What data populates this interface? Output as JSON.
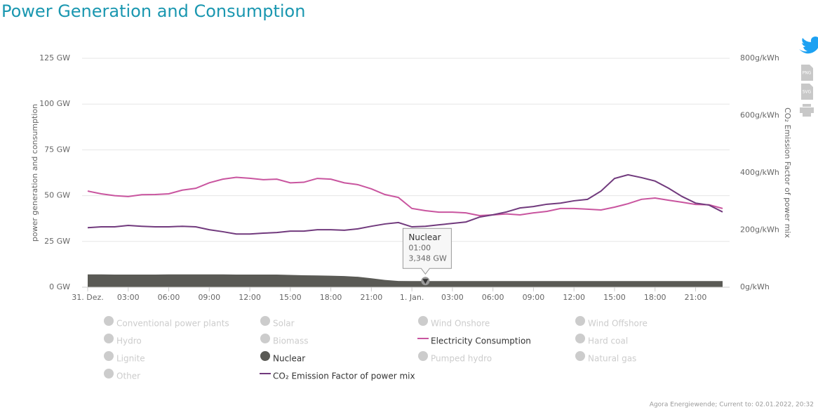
{
  "chart_data": {
    "type": "line",
    "title": "Power Generation and Consumption",
    "ylabel": "power generation and consumption",
    "y2label": "CO₂ Emission Factor of power mix",
    "categories": [
      "31. Dez.",
      null,
      null,
      "03:00",
      null,
      null,
      "06:00",
      null,
      null,
      "09:00",
      null,
      null,
      "12:00",
      null,
      null,
      "15:00",
      null,
      null,
      "18:00",
      null,
      null,
      "21:00",
      null,
      null,
      "1. Jan.",
      "01:00",
      null,
      "03:00",
      null,
      null,
      "06:00",
      null,
      null,
      "09:00",
      null,
      null,
      "12:00",
      null,
      null,
      "15:00",
      null,
      null,
      "18:00",
      null,
      null,
      "21:00",
      null,
      null
    ],
    "ylim": [
      0,
      125
    ],
    "yticks": [
      {
        "value": 0,
        "label": "0 GW"
      },
      {
        "value": 25,
        "label": "25 GW"
      },
      {
        "value": 50,
        "label": "50 GW"
      },
      {
        "value": 75,
        "label": "75 GW"
      },
      {
        "value": 100,
        "label": "100 GW"
      },
      {
        "value": 125,
        "label": "125 GW"
      }
    ],
    "y2lim": [
      0,
      800
    ],
    "y2ticks": [
      {
        "value": 0,
        "label": "0g/kWh"
      },
      {
        "value": 200,
        "label": "200g/kWh"
      },
      {
        "value": 400,
        "label": "400g/kWh"
      },
      {
        "value": 600,
        "label": "600g/kWh"
      },
      {
        "value": 800,
        "label": "800g/kWh"
      }
    ],
    "grid": true,
    "series": [
      {
        "name": "Nuclear",
        "type": "area",
        "color": "#5a5a55",
        "values": [
          7.0,
          7.0,
          6.9,
          6.9,
          6.9,
          6.9,
          7.0,
          7.0,
          7.0,
          7.0,
          7.0,
          6.9,
          6.9,
          6.9,
          6.9,
          6.7,
          6.5,
          6.4,
          6.3,
          6.1,
          5.7,
          4.9,
          4.0,
          3.4,
          3.35,
          3.348,
          3.35,
          3.35,
          3.35,
          3.35,
          3.35,
          3.35,
          3.35,
          3.35,
          3.35,
          3.35,
          3.35,
          3.35,
          3.35,
          3.35,
          3.35,
          3.35,
          3.35,
          3.35,
          3.35,
          3.35,
          3.35,
          3.35
        ],
        "value_labels": [
          null,
          null,
          null,
          null,
          null,
          null,
          null,
          null,
          null,
          null,
          null,
          null,
          null,
          null,
          null,
          null,
          null,
          null,
          null,
          null,
          null,
          null,
          null,
          null,
          null,
          "3,348 GW",
          null,
          null,
          null,
          null,
          null,
          null,
          null,
          null,
          null,
          null,
          null,
          null,
          null,
          null,
          null,
          null,
          null,
          null,
          null,
          null,
          null,
          null
        ]
      },
      {
        "name": "Electricity Consumption",
        "type": "line",
        "color": "#c9559f",
        "values": [
          52.5,
          51,
          50,
          49.5,
          50.5,
          50.6,
          51,
          53,
          54,
          57,
          59,
          60,
          59.5,
          58.7,
          59,
          57,
          57.3,
          59.4,
          59,
          57,
          56,
          53.7,
          50.6,
          49,
          43,
          41.8,
          41,
          41,
          40.6,
          39.1,
          39.5,
          40,
          39.5,
          40.6,
          41.4,
          43,
          43,
          42.6,
          42.2,
          43.7,
          45.6,
          48,
          48.7,
          47.5,
          46.4,
          45.2,
          45,
          43
        ]
      },
      {
        "name": "CO₂ Emission Factor of power mix",
        "type": "line",
        "axis": "y2",
        "color": "#713a7d",
        "values": [
          208,
          211,
          211,
          216,
          213,
          211,
          211,
          213,
          211,
          201,
          194,
          186,
          186,
          189,
          191,
          196,
          196,
          201,
          201,
          199,
          204,
          213,
          221,
          226,
          211,
          213,
          218,
          223,
          228,
          245,
          253,
          263,
          277,
          282,
          290,
          294,
          302,
          307,
          336,
          380,
          393,
          383,
          371,
          346,
          317,
          294,
          287,
          263
        ]
      }
    ],
    "legend": [
      {
        "name": "Conventional power plants",
        "visible": false
      },
      {
        "name": "Solar",
        "visible": false
      },
      {
        "name": "Wind Onshore",
        "visible": false
      },
      {
        "name": "Wind Offshore",
        "visible": false
      },
      {
        "name": "Hydro",
        "visible": false
      },
      {
        "name": "Biomass",
        "visible": false
      },
      {
        "series": 1
      },
      {
        "name": "Hard coal",
        "visible": false
      },
      {
        "name": "Lignite",
        "visible": false
      },
      {
        "series": 0
      },
      {
        "name": "Pumped hydro",
        "visible": false
      },
      {
        "name": "Natural gas",
        "visible": false
      },
      {
        "name": "Other",
        "visible": false
      },
      {
        "series": 2
      }
    ],
    "source": "Agora Energiewende; Current to: 02.01.2022, 20:32",
    "icons": [
      "PNG",
      "SVG"
    ]
  }
}
